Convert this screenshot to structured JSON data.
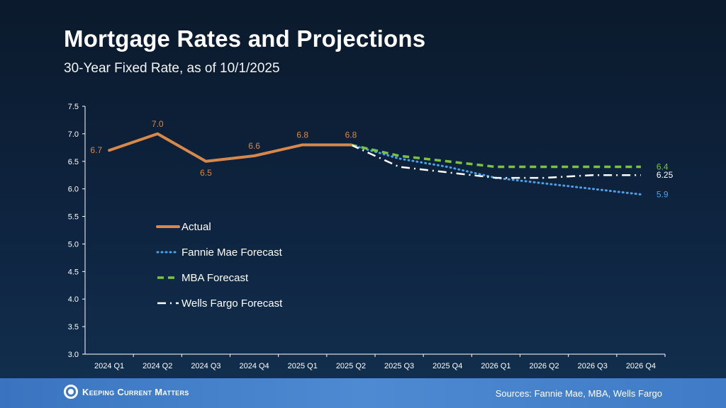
{
  "header": {
    "title": "Mortgage Rates and Projections",
    "subtitle": "30-Year Fixed Rate, as of 10/1/2025"
  },
  "footer": {
    "logo": "Keeping Current Matters",
    "sources": "Sources: Fannie Mae, MBA, Wells Fargo"
  },
  "chart_data": {
    "type": "line",
    "categories": [
      "2024 Q1",
      "2024 Q2",
      "2024 Q3",
      "2024 Q4",
      "2025 Q1",
      "2025 Q2",
      "2025 Q3",
      "2025 Q4",
      "2026 Q1",
      "2026 Q2",
      "2026 Q3",
      "2026 Q4"
    ],
    "ylim": [
      3.0,
      7.5
    ],
    "yticks": [
      "3.0",
      "3.5",
      "4.0",
      "4.5",
      "5.0",
      "5.5",
      "6.0",
      "6.5",
      "7.0",
      "7.5"
    ],
    "grid": false,
    "legend_position": "left-middle",
    "series": [
      {
        "name": "Actual",
        "color": "#d8894a",
        "style": "solid",
        "values": [
          6.7,
          7.0,
          6.5,
          6.6,
          6.8,
          6.8,
          null,
          null,
          null,
          null,
          null,
          null
        ],
        "labels": [
          "6.7",
          "7.0",
          "6.5",
          "6.6",
          "6.8",
          "6.8"
        ]
      },
      {
        "name": "Fannie Mae Forecast",
        "color": "#4aa3e8",
        "style": "dotted",
        "values": [
          null,
          null,
          null,
          null,
          null,
          6.8,
          6.55,
          6.4,
          6.2,
          6.1,
          6.0,
          5.9
        ],
        "end_label": "5.9"
      },
      {
        "name": "MBA Forecast",
        "color": "#7cc242",
        "style": "dashed",
        "values": [
          null,
          null,
          null,
          null,
          null,
          6.8,
          6.6,
          6.5,
          6.4,
          6.4,
          6.4,
          6.4
        ],
        "end_label": "6.4"
      },
      {
        "name": "Wells Fargo Forecast",
        "color": "#ffffff",
        "style": "dashdot",
        "values": [
          null,
          null,
          null,
          null,
          null,
          6.8,
          6.4,
          6.3,
          6.2,
          6.2,
          6.25,
          6.25
        ],
        "end_label": "6.25"
      }
    ]
  }
}
